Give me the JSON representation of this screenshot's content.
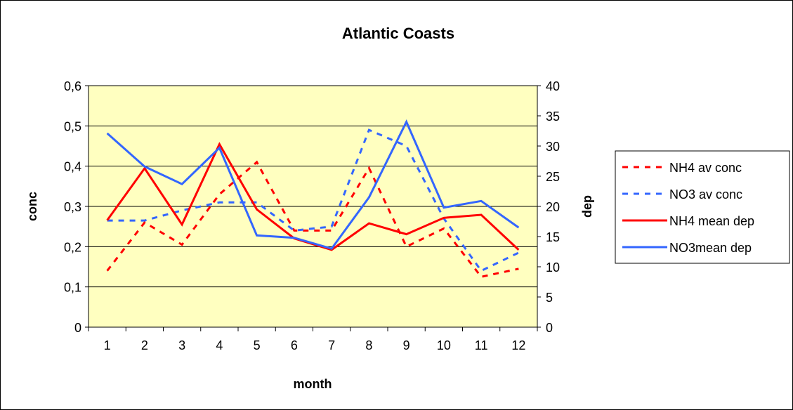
{
  "chart_data": {
    "type": "line",
    "title": "Atlantic Coasts",
    "xlabel": "month",
    "ylabel": "conc",
    "y2label": "dep",
    "categories": [
      "1",
      "2",
      "3",
      "4",
      "5",
      "6",
      "7",
      "8",
      "9",
      "10",
      "11",
      "12"
    ],
    "y_left": {
      "lim": [
        0,
        0.6
      ],
      "ticks": [
        "0",
        "0,1",
        "0,2",
        "0,3",
        "0,4",
        "0,5",
        "0,6"
      ]
    },
    "y_right": {
      "lim": [
        0,
        40
      ],
      "ticks": [
        "0",
        "5",
        "10",
        "15",
        "20",
        "25",
        "30",
        "35",
        "40"
      ]
    },
    "grid": true,
    "legend_position": "right",
    "plot_background": "#ffffc0",
    "series": [
      {
        "name": "NH4 av conc",
        "axis": "left",
        "dashed": true,
        "color": "#ff0000",
        "values": [
          0.14,
          0.26,
          0.205,
          0.33,
          0.41,
          0.24,
          0.24,
          0.395,
          0.2,
          0.245,
          0.125,
          0.145
        ]
      },
      {
        "name": "NO3 av conc",
        "axis": "left",
        "dashed": true,
        "color": "#3366ff",
        "values": [
          0.265,
          0.265,
          0.29,
          0.31,
          0.31,
          0.24,
          0.25,
          0.49,
          0.45,
          0.27,
          0.14,
          0.185
        ]
      },
      {
        "name": "NH4 mean dep",
        "axis": "right",
        "dashed": false,
        "color": "#ff0000",
        "values": [
          17.7,
          26.3,
          17,
          30.3,
          19.5,
          14.7,
          12.8,
          17.2,
          15.4,
          18.1,
          18.6,
          12.8
        ]
      },
      {
        "name": "NO3mean dep",
        "axis": "right",
        "dashed": false,
        "color": "#3366ff",
        "values": [
          32.1,
          26.6,
          23.7,
          29.7,
          15.2,
          14.8,
          13,
          21.5,
          34,
          19.8,
          20.9,
          16.5
        ]
      }
    ]
  }
}
